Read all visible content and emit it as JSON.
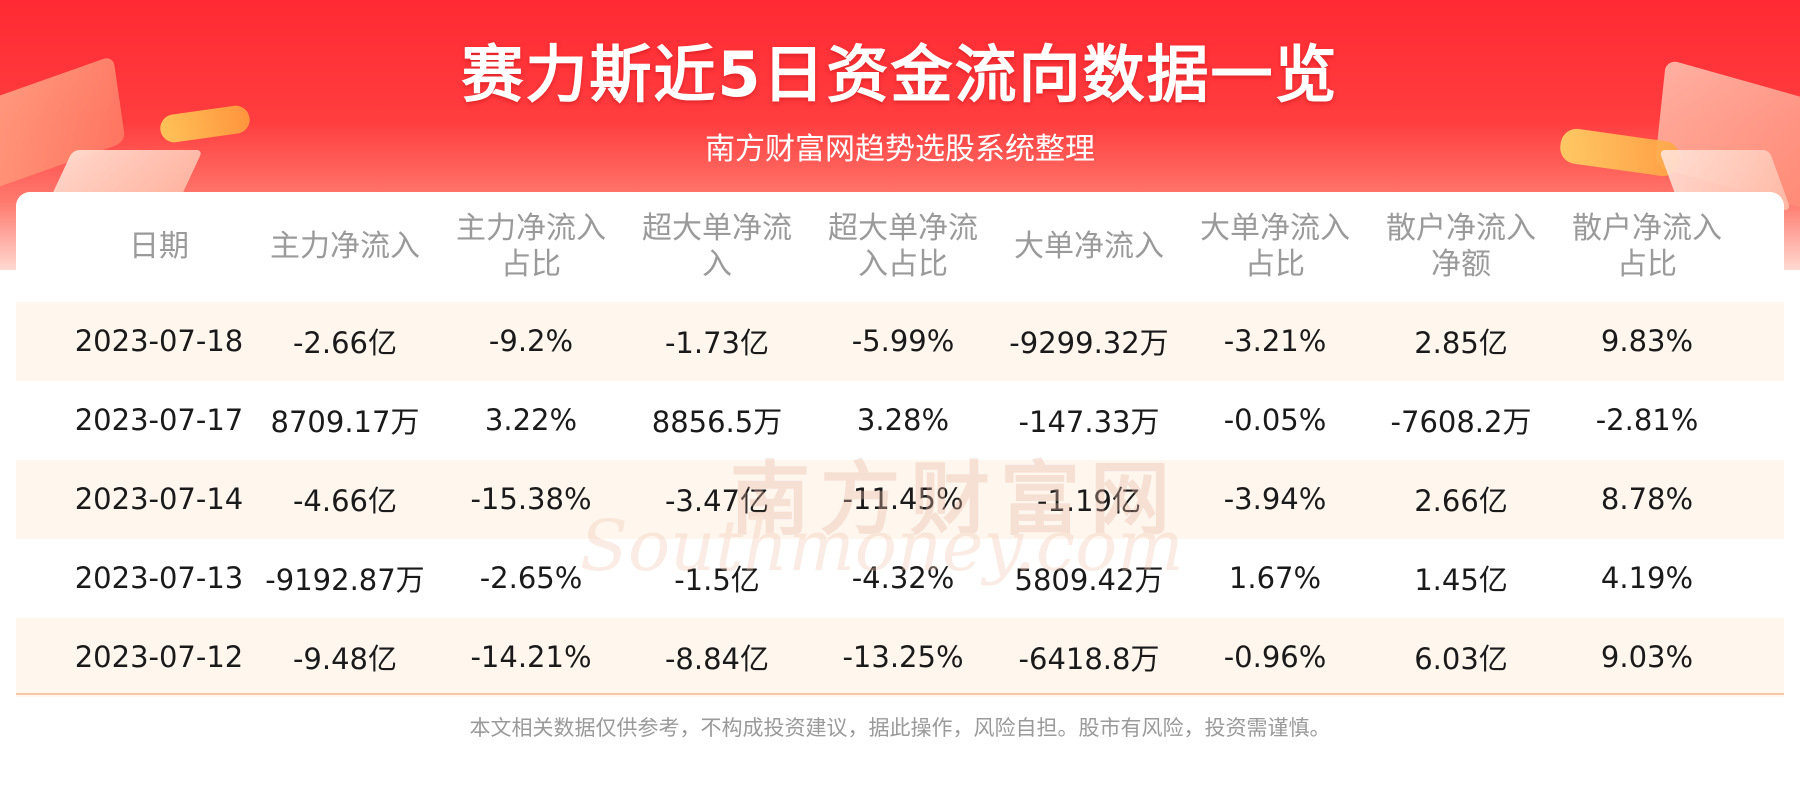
{
  "banner": {
    "title": "赛力斯近5日资金流向数据一览",
    "subtitle": "南方财富网趋势选股系统整理"
  },
  "table": {
    "headers": [
      "日期",
      "主力净流入",
      "主力净流入\n占比",
      "超大单净流\n入",
      "超大单净流\n入占比",
      "大单净流入",
      "大单净流入\n占比",
      "散户净流入\n净额",
      "散户净流入\n占比"
    ],
    "rows": [
      [
        "2023-07-18",
        "-2.66亿",
        "-9.2%",
        "-1.73亿",
        "-5.99%",
        "-9299.32万",
        "-3.21%",
        "2.85亿",
        "9.83%"
      ],
      [
        "2023-07-17",
        "8709.17万",
        "3.22%",
        "8856.5万",
        "3.28%",
        "-147.33万",
        "-0.05%",
        "-7608.2万",
        "-2.81%"
      ],
      [
        "2023-07-14",
        "-4.66亿",
        "-15.38%",
        "-3.47亿",
        "-11.45%",
        "-1.19亿",
        "-3.94%",
        "2.66亿",
        "8.78%"
      ],
      [
        "2023-07-13",
        "-9192.87万",
        "-2.65%",
        "-1.5亿",
        "-4.32%",
        "5809.42万",
        "1.67%",
        "1.45亿",
        "4.19%"
      ],
      [
        "2023-07-12",
        "-9.48亿",
        "-14.21%",
        "-8.84亿",
        "-13.25%",
        "-6418.8万",
        "-0.96%",
        "6.03亿",
        "9.03%"
      ]
    ]
  },
  "watermark": {
    "cn": "南方财富网",
    "en": "Southmoney.com"
  },
  "footer": {
    "disclaimer": "本文相关数据仅供参考，不构成投资建议，据此操作，风险自担。股市有风险，投资需谨慎。"
  },
  "colors": {
    "banner_red": "#ff2a33",
    "row_shade": "#fff6ee",
    "header_text": "#9a9a9a",
    "body_text": "#1a1a1a"
  }
}
